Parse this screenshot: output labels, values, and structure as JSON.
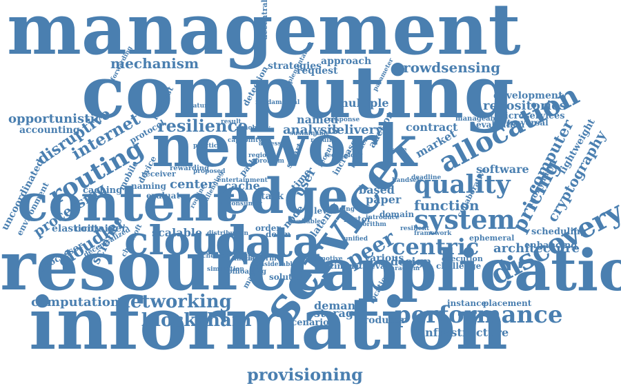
{
  "accent_color": "#4a7fb0",
  "words": [
    "management",
    "computing",
    "network",
    "information",
    "resource",
    "application",
    "service",
    "content",
    "edge",
    "data",
    "cloud",
    "system",
    "quality",
    "allocation",
    "discovery",
    "provisioning",
    "performance",
    "blockchain",
    "networking",
    "routing",
    "internet",
    "resilience",
    "mechanism",
    "crowdsensing",
    "opportunistic",
    "disruptive",
    "pricing",
    "computer",
    "centric",
    "peer",
    "repositories",
    "analysis",
    "delivery",
    "contract",
    "function",
    "architecture",
    "infrastructure",
    "computation",
    "cloudlet",
    "processing",
    "uncoordinated",
    "environment",
    "accounting",
    "science",
    "processor",
    "elasticity",
    "container",
    "caching",
    "mobile",
    "device",
    "scalable",
    "center",
    "cache",
    "user",
    "based",
    "paper",
    "various",
    "design",
    "demand",
    "storage",
    "producer",
    "scenario",
    "instance",
    "placement",
    "enhancing",
    "scheduling",
    "software",
    "market",
    "cryptography",
    "lightweight",
    "development",
    "microservices",
    "traversal",
    "evaluation",
    "strategies",
    "approach",
    "request",
    "multiple",
    "named",
    "time",
    "node",
    "domain",
    "solution",
    "optimal",
    "retrieval",
    "challenge",
    "execution",
    "ephemeral",
    "anonymity",
    "collaborative",
    "latency",
    "decentralised",
    "detection",
    "protocol",
    "interest",
    "naming",
    "evaluate",
    "path",
    "task",
    "smart",
    "level",
    "order",
    "factor",
    "auction",
    "increase",
    "deem",
    "location",
    "matching",
    "receiver",
    "rewarding",
    "chainsoft",
    "decentralized",
    "offloading",
    "platform",
    "scheme",
    "entertainment",
    "limited",
    "result",
    "forwarding",
    "implementation",
    "parameter",
    "response",
    "introduce",
    "manageable",
    "paradigm",
    "considerable",
    "automotive",
    "available",
    "recent",
    "provider",
    "handset",
    "deadline",
    "algorithm",
    "unified",
    "simulation",
    "technology",
    "resilient",
    "framework",
    "practical",
    "capability",
    "fundamental",
    "feature",
    "routine",
    "region",
    "access",
    "mobility",
    "distribution",
    "challenging",
    "usage",
    "proposed",
    "consumer",
    "problem",
    "require",
    "sustainable",
    "coding",
    "flexible",
    "reliability",
    "multicast",
    "status"
  ]
}
